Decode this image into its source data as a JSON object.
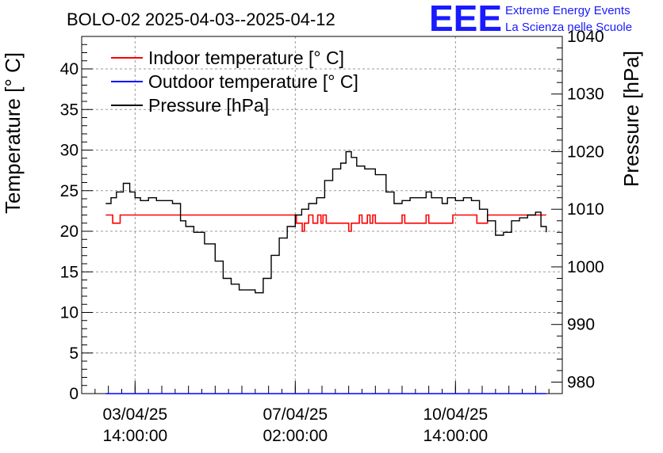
{
  "chart_data": {
    "type": "line",
    "title": "BOLO-02 2025-04-03--2025-04-12",
    "ylabel": "Temperature [° C]",
    "y2label": "Pressure [hPa]",
    "ylim": [
      0,
      44
    ],
    "y2lim": [
      978,
      1040
    ],
    "yticks": [
      0,
      5,
      10,
      15,
      20,
      25,
      30,
      35,
      40
    ],
    "y2ticks": [
      980,
      990,
      1000,
      1010,
      1020,
      1030,
      1040
    ],
    "xlim": [
      -1.0,
      8.0
    ],
    "xunit": "days since 03/04/25 14:00",
    "xticks": [
      {
        "x": 0,
        "line1": "03/04/25",
        "line2": "14:00:00"
      },
      {
        "x": 3,
        "line1": "07/04/25",
        "line2": "02:00:00"
      },
      {
        "x": 6,
        "line1": "10/04/25",
        "line2": "14:00:00"
      }
    ],
    "legend": {
      "placement": "top-left"
    },
    "grid": true,
    "series": [
      {
        "name": "Indoor temperature [° C]",
        "axis": "left",
        "color": "#ff0000",
        "x": [
          -0.55,
          -0.42,
          -0.42,
          -0.28,
          -0.28,
          1.5,
          3.0,
          3.02,
          3.02,
          3.13,
          3.13,
          3.17,
          3.17,
          3.25,
          3.25,
          3.33,
          3.33,
          3.42,
          3.42,
          3.48,
          3.48,
          3.52,
          3.52,
          3.58,
          3.58,
          3.62,
          3.62,
          4.0,
          4.0,
          4.05,
          4.05,
          4.2,
          4.2,
          4.25,
          4.25,
          4.35,
          4.35,
          4.4,
          4.4,
          4.45,
          4.45,
          4.5,
          4.5,
          4.6,
          4.6,
          5.0,
          5.0,
          5.05,
          5.05,
          5.45,
          5.45,
          5.5,
          5.5,
          5.95,
          5.95,
          6.0,
          6.0,
          6.4,
          6.4,
          6.6,
          6.6,
          7.0,
          7.4,
          7.7
        ],
        "values": [
          22,
          22,
          21,
          21,
          22,
          22,
          22,
          22,
          21,
          21,
          20,
          20,
          21,
          21,
          22,
          22,
          21,
          21,
          22,
          22,
          21,
          21,
          22,
          22,
          21,
          21,
          21,
          21,
          20,
          20,
          21,
          21,
          22,
          22,
          21,
          21,
          22,
          22,
          21,
          21,
          22,
          22,
          21,
          21,
          21,
          21,
          22,
          22,
          21,
          21,
          22,
          22,
          21,
          21,
          22,
          22,
          22,
          22,
          21,
          21,
          22,
          22,
          22,
          22
        ]
      },
      {
        "name": "Outdoor temperature [° C]",
        "axis": "left",
        "color": "#0000ff",
        "x": [
          -0.55,
          7.7
        ],
        "values": [
          0,
          0
        ]
      },
      {
        "name": "Pressure [hPa]",
        "axis": "right",
        "color": "#000000",
        "x": [
          -0.55,
          -0.45,
          -0.35,
          -0.22,
          -0.1,
          0.0,
          0.1,
          0.25,
          0.4,
          0.55,
          0.7,
          0.85,
          0.95,
          1.1,
          1.3,
          1.5,
          1.65,
          1.8,
          1.95,
          2.1,
          2.25,
          2.4,
          2.55,
          2.7,
          2.85,
          3.0,
          3.12,
          3.25,
          3.4,
          3.55,
          3.7,
          3.85,
          3.95,
          4.05,
          4.15,
          4.3,
          4.5,
          4.7,
          4.85,
          5.0,
          5.15,
          5.3,
          5.45,
          5.55,
          5.65,
          5.75,
          5.85,
          6.0,
          6.15,
          6.3,
          6.45,
          6.6,
          6.75,
          6.9,
          7.05,
          7.2,
          7.35,
          7.5,
          7.6,
          7.7
        ],
        "values": [
          1011,
          1012,
          1013,
          1014.5,
          1013,
          1012,
          1011.5,
          1012,
          1011.5,
          1011.5,
          1011,
          1008,
          1007,
          1006,
          1004,
          1001,
          998,
          997,
          996,
          996,
          995.5,
          998,
          1002,
          1005,
          1007,
          1009,
          1010,
          1011,
          1012,
          1015,
          1017,
          1018,
          1020,
          1019,
          1017.5,
          1017,
          1016,
          1013,
          1011,
          1011.5,
          1012,
          1012,
          1013,
          1012,
          1012,
          1011,
          1012,
          1011.5,
          1012,
          1011.5,
          1010,
          1008,
          1005.5,
          1006,
          1008,
          1008.5,
          1009,
          1009.5,
          1007,
          1006
        ]
      }
    ]
  },
  "logo": {
    "mark": "EEE",
    "line1": "Extreme Energy Events",
    "line2": "La Scienza nelle Scuole"
  }
}
